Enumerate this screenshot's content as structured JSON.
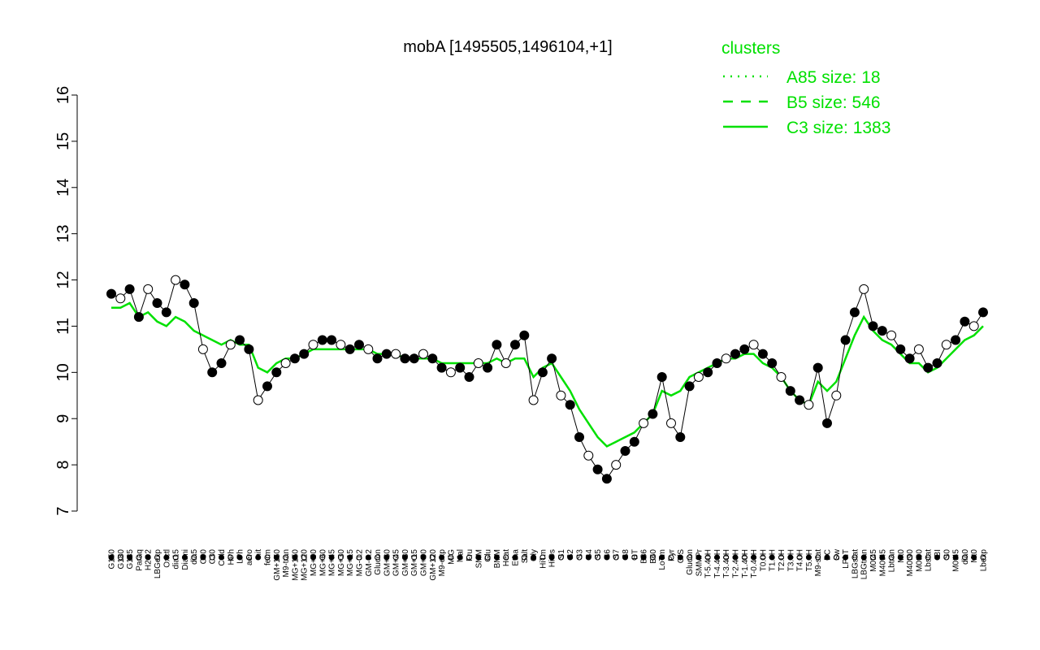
{
  "chart_data": {
    "type": "line",
    "title": "mobA [1495505,1496104,+1]",
    "xlabel": "",
    "ylabel": "",
    "ylim": [
      7,
      16
    ],
    "yticks": [
      7,
      8,
      9,
      10,
      11,
      12,
      13,
      14,
      15,
      16
    ],
    "grid": false,
    "legend": {
      "title": "clusters",
      "placement": "top-right",
      "entries": [
        {
          "label": "A85 size: 18",
          "style": "dotted"
        },
        {
          "label": "B5 size: 546",
          "style": "dashed"
        },
        {
          "label": "C3 size: 1383",
          "style": "solid"
        }
      ]
    },
    "colors": {
      "cluster_lines": "#00e000",
      "points_dark": "#000000",
      "points_light": "#ffffff",
      "axis": "#000000"
    },
    "x_tick_labels": [
      "G150",
      "G180",
      "G135",
      "Paraq",
      "H2O2",
      "LBGexp",
      "Oxctl",
      "dia15",
      "Diami",
      "dia5",
      "C90",
      "C30",
      "Cold",
      "HPh",
      "LPh",
      "aero",
      "nit",
      "ferm",
      "GM+150",
      "M9-tran",
      "MG+150",
      "MG+120",
      "MG+90",
      "MG+60",
      "MG+45",
      "MG+30",
      "MG+15",
      "MG-0.2",
      "GM-0.2",
      "Glucon",
      "GM+60",
      "GM+45",
      "GM+30",
      "GM+15",
      "GM+90",
      "GM+120",
      "M9-exp",
      "M/G",
      "Mal",
      "Fru",
      "SMM",
      "Glu",
      "BMM",
      "Heat",
      "Etha",
      "Salt",
      "Gly",
      "HiTm",
      "HiOs",
      "S1",
      "S2",
      "S3",
      "S4",
      "S5",
      "S6",
      "S7",
      "S8",
      "BT",
      "B36",
      "B60",
      "LoTm",
      "Pyr",
      "G/S",
      "Glucon",
      "SMMPr",
      "T-5.40H",
      "T-4.40H",
      "T-3.40H",
      "T-2.40H",
      "T-1.40H",
      "T-0.40H",
      "T0.0H",
      "T1.0H",
      "T2.0H",
      "T3.0H",
      "T4.0H",
      "T5.0H",
      "M9-stat",
      "BC",
      "Sw",
      "LPhT",
      "LBGstat",
      "LBGtran",
      "M0t45",
      "M40t45",
      "Lbtran",
      "Mt0",
      "M40t90",
      "M0t90",
      "Lbstat",
      "BI",
      "S0",
      "M0t45",
      "dia0",
      "Mt0",
      "Lbexp"
    ],
    "series": [
      {
        "style": "dark-points-with-line",
        "values": [
          11.7,
          11.6,
          11.8,
          11.2,
          11.8,
          11.5,
          11.3,
          12.0,
          11.9,
          11.5,
          10.5,
          10.0,
          10.2,
          10.6,
          10.7,
          10.5,
          9.4,
          9.7,
          10.0,
          10.2,
          10.3,
          10.4,
          10.6,
          10.7,
          10.7,
          10.6,
          10.5,
          10.6,
          10.5,
          10.3,
          10.4,
          10.4,
          10.3,
          10.3,
          10.4,
          10.3,
          10.1,
          10.0,
          10.1,
          9.9,
          10.2,
          10.1,
          10.6,
          10.2,
          10.6,
          10.8,
          9.4,
          10.0,
          10.3,
          9.5,
          9.3,
          8.6,
          8.2,
          7.9,
          7.7,
          8.0,
          8.3,
          8.5,
          8.9,
          9.1,
          9.9,
          8.9,
          8.6,
          9.7,
          9.9,
          10.0,
          10.2,
          10.3,
          10.4,
          10.5,
          10.6,
          10.4,
          10.2,
          9.9,
          9.6,
          9.4,
          9.3,
          10.1,
          8.9,
          9.5,
          10.7,
          11.3,
          11.8,
          11.0,
          10.9,
          10.8,
          10.5,
          10.3,
          10.5,
          10.1,
          10.2,
          10.6,
          10.7,
          11.1,
          11.0,
          11.3
        ]
      },
      {
        "style": "cluster-C3-line",
        "values": [
          11.4,
          11.4,
          11.5,
          11.2,
          11.3,
          11.1,
          11.0,
          11.2,
          11.1,
          10.9,
          10.8,
          10.7,
          10.6,
          10.7,
          10.6,
          10.6,
          10.1,
          10.0,
          10.2,
          10.3,
          10.3,
          10.4,
          10.5,
          10.5,
          10.5,
          10.5,
          10.5,
          10.5,
          10.5,
          10.4,
          10.4,
          10.4,
          10.3,
          10.3,
          10.3,
          10.3,
          10.2,
          10.2,
          10.2,
          10.2,
          10.2,
          10.2,
          10.3,
          10.2,
          10.3,
          10.3,
          9.9,
          10.1,
          10.2,
          9.9,
          9.6,
          9.2,
          8.9,
          8.6,
          8.4,
          8.5,
          8.6,
          8.7,
          8.9,
          9.1,
          9.6,
          9.5,
          9.6,
          9.9,
          10.0,
          10.1,
          10.2,
          10.3,
          10.3,
          10.4,
          10.4,
          10.2,
          10.1,
          9.9,
          9.6,
          9.4,
          9.3,
          9.8,
          9.6,
          9.8,
          10.3,
          10.8,
          11.2,
          10.9,
          10.7,
          10.6,
          10.4,
          10.2,
          10.2,
          10.0,
          10.1,
          10.3,
          10.5,
          10.7,
          10.8,
          11.0
        ]
      }
    ]
  }
}
